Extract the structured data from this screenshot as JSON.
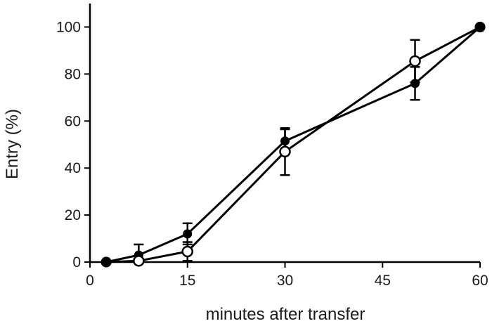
{
  "chart_data": {
    "type": "line",
    "title": "",
    "xlabel": "minutes after transfer",
    "ylabel": "Entry (%)",
    "xlim": [
      0,
      60
    ],
    "ylim": [
      0,
      110
    ],
    "x_ticks": [
      0,
      15,
      30,
      45,
      60
    ],
    "y_ticks": [
      0,
      20,
      40,
      60,
      80,
      100
    ],
    "grid": false,
    "legend": "none",
    "series": [
      {
        "marker": "filled-circle",
        "color": "#000000",
        "x": [
          2.5,
          7.5,
          15,
          30,
          50,
          60
        ],
        "y": [
          0,
          3,
          12,
          51.5,
          76,
          100
        ],
        "err": [
          0,
          4.5,
          4.5,
          5,
          7,
          0
        ]
      },
      {
        "marker": "open-circle",
        "color": "#000000",
        "x": [
          2.5,
          7.5,
          15,
          30,
          50,
          60
        ],
        "y": [
          0,
          0.5,
          4.5,
          47,
          85.5,
          100
        ],
        "err": [
          0,
          0,
          4,
          10,
          9,
          0
        ]
      }
    ]
  }
}
